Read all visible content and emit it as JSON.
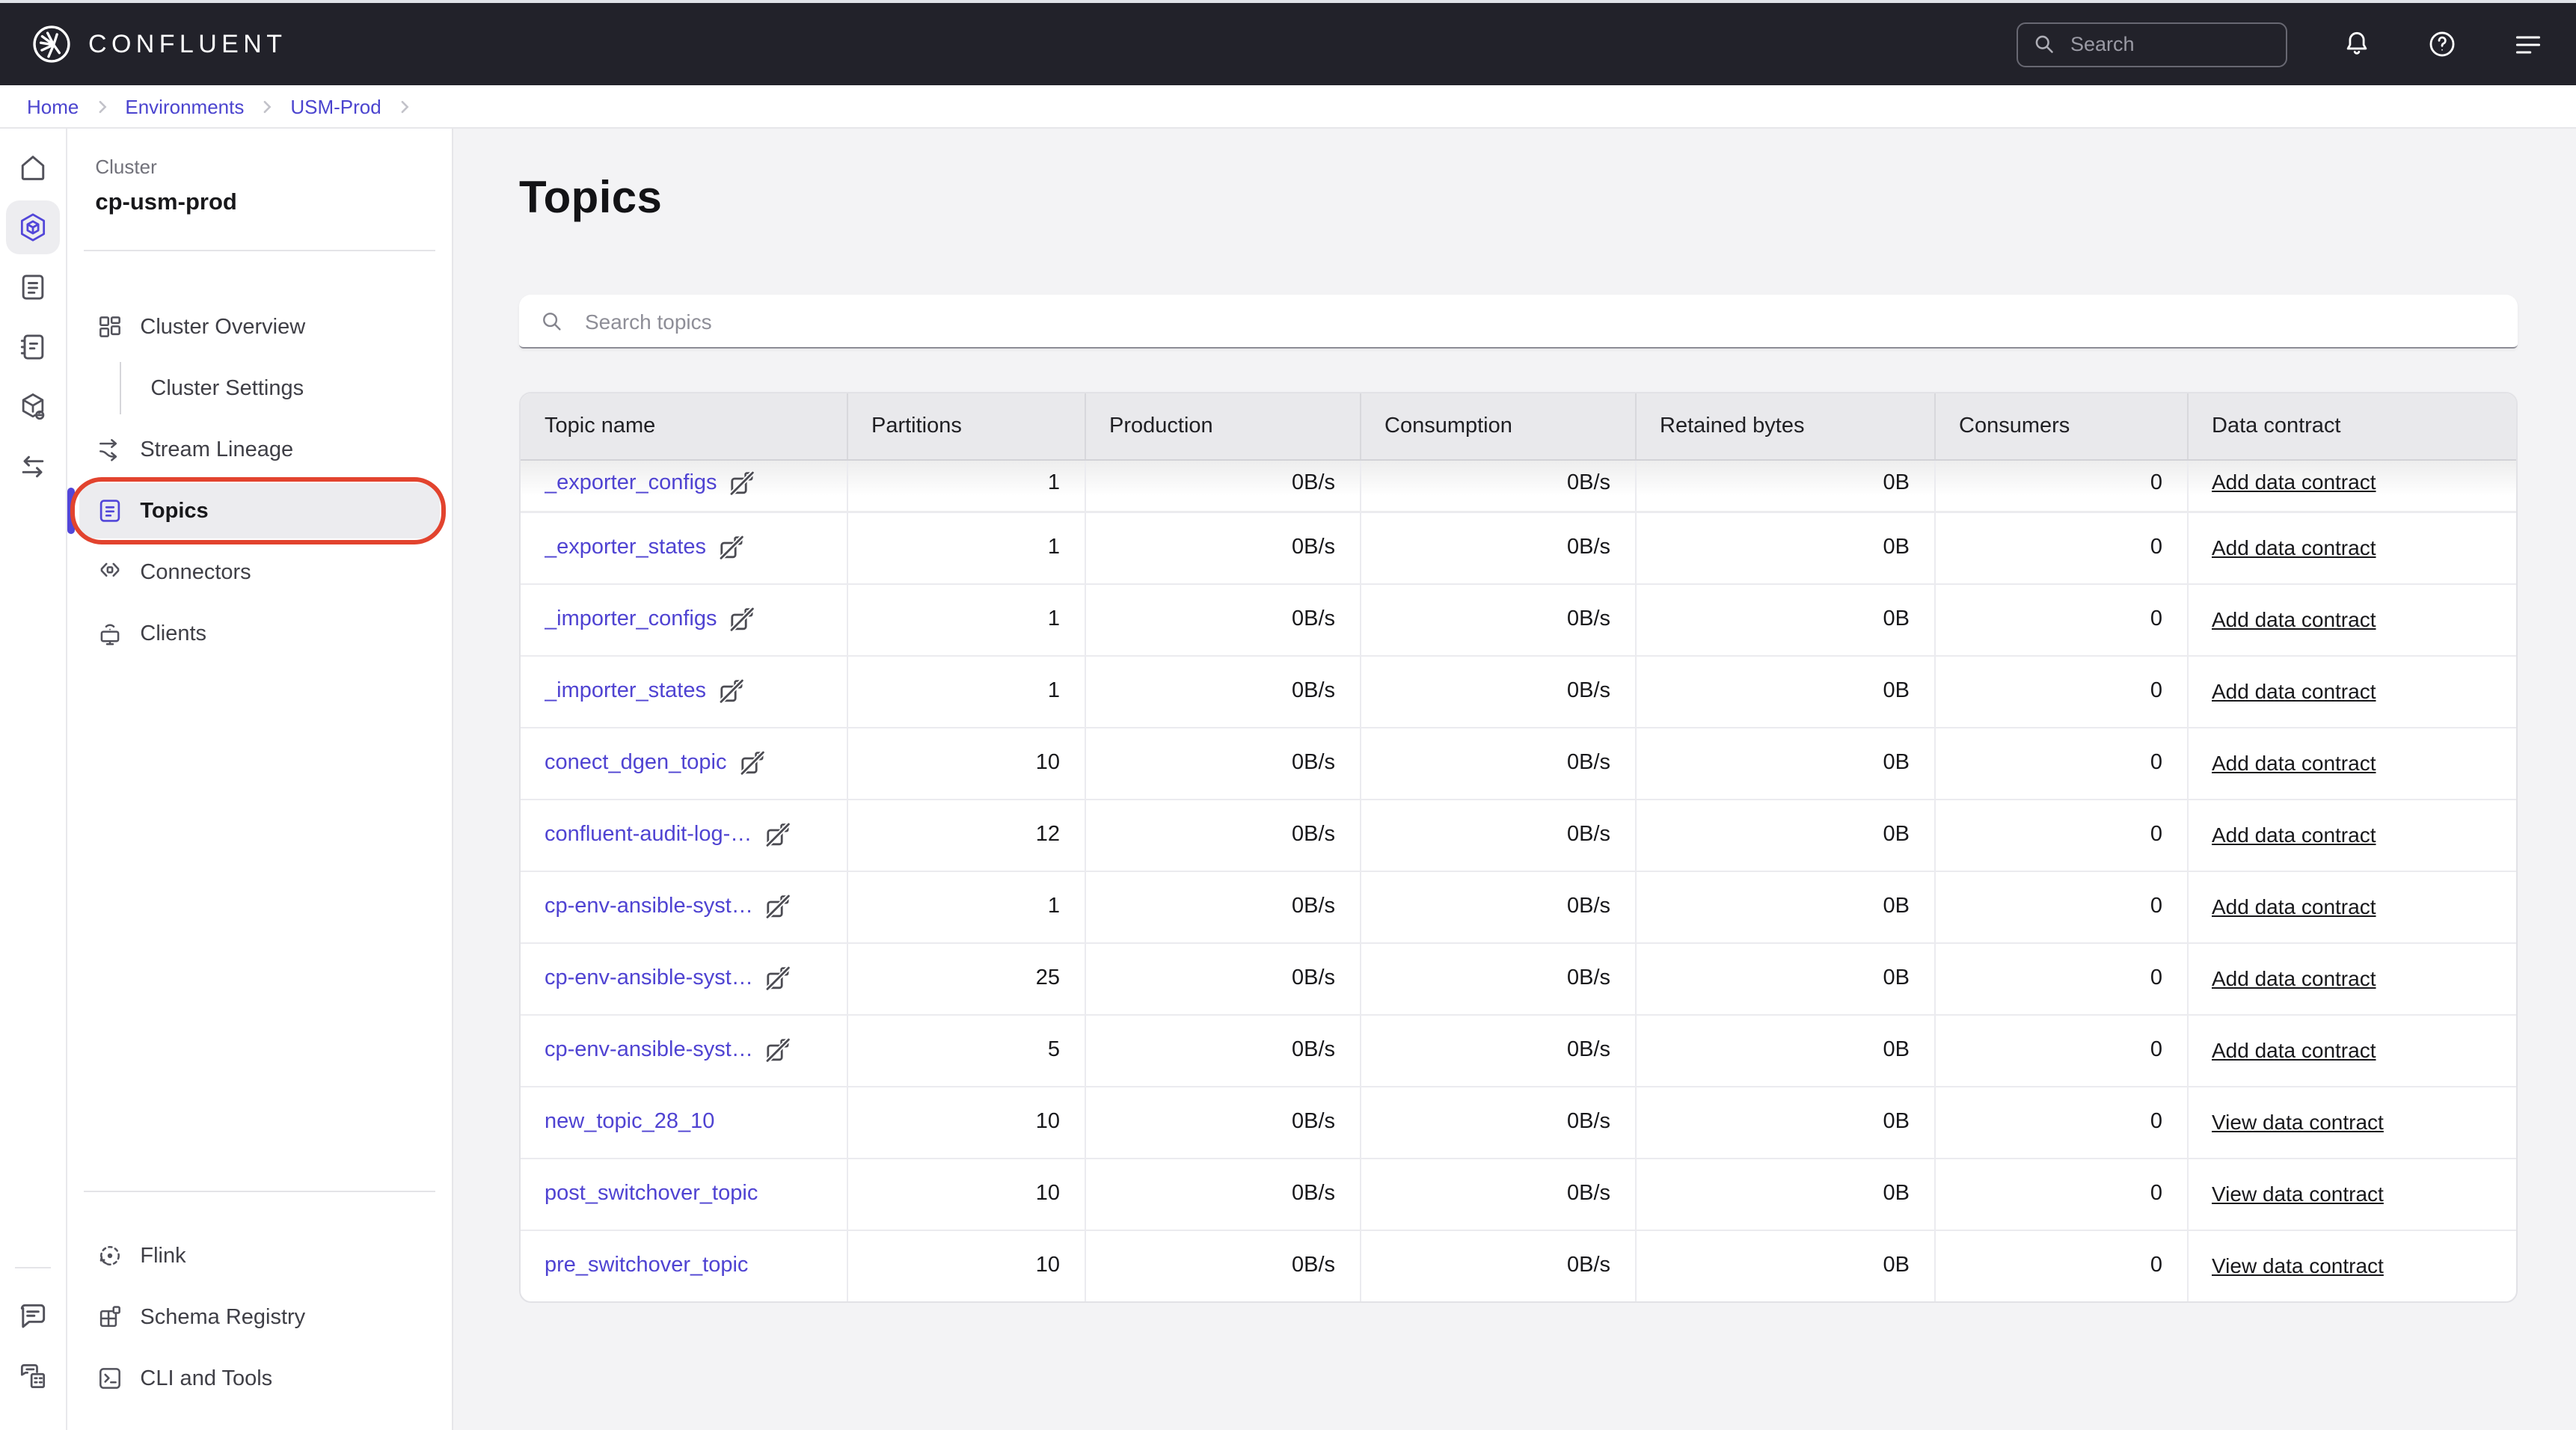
{
  "topbar": {
    "brand": "CONFLUENT",
    "search_placeholder": "Search"
  },
  "breadcrumb": {
    "items": [
      "Home",
      "Environments",
      "USM-Prod"
    ]
  },
  "sidebar": {
    "cluster_label": "Cluster",
    "cluster_name": "cp-usm-prod",
    "menu": [
      {
        "id": "cluster-overview",
        "label": "Cluster Overview"
      },
      {
        "id": "cluster-settings",
        "label": "Cluster Settings"
      },
      {
        "id": "stream-lineage",
        "label": "Stream Lineage"
      },
      {
        "id": "topics",
        "label": "Topics",
        "selected": true
      },
      {
        "id": "connectors",
        "label": "Connectors"
      },
      {
        "id": "clients",
        "label": "Clients"
      }
    ],
    "bottom_menu": [
      {
        "id": "flink",
        "label": "Flink"
      },
      {
        "id": "schema-registry",
        "label": "Schema Registry"
      },
      {
        "id": "cli-tools",
        "label": "CLI and Tools"
      }
    ]
  },
  "main": {
    "title": "Topics",
    "search_placeholder": "Search topics",
    "table": {
      "columns": [
        "Topic name",
        "Partitions",
        "Production",
        "Consumption",
        "Retained bytes",
        "Consumers",
        "Data contract"
      ],
      "rows": [
        {
          "name": "_exporter_configs",
          "schema_missing_icon": true,
          "partitions": "1",
          "production": "0B/s",
          "consumption": "0B/s",
          "retained_bytes": "0B",
          "consumers": "0",
          "data_contract": "Add data contract"
        },
        {
          "name": "_exporter_states",
          "schema_missing_icon": true,
          "partitions": "1",
          "production": "0B/s",
          "consumption": "0B/s",
          "retained_bytes": "0B",
          "consumers": "0",
          "data_contract": "Add data contract"
        },
        {
          "name": "_importer_configs",
          "schema_missing_icon": true,
          "partitions": "1",
          "production": "0B/s",
          "consumption": "0B/s",
          "retained_bytes": "0B",
          "consumers": "0",
          "data_contract": "Add data contract"
        },
        {
          "name": "_importer_states",
          "schema_missing_icon": true,
          "partitions": "1",
          "production": "0B/s",
          "consumption": "0B/s",
          "retained_bytes": "0B",
          "consumers": "0",
          "data_contract": "Add data contract"
        },
        {
          "name": "conect_dgen_topic",
          "schema_missing_icon": true,
          "partitions": "10",
          "production": "0B/s",
          "consumption": "0B/s",
          "retained_bytes": "0B",
          "consumers": "0",
          "data_contract": "Add data contract"
        },
        {
          "name": "confluent-audit-log-…",
          "schema_missing_icon": true,
          "partitions": "12",
          "production": "0B/s",
          "consumption": "0B/s",
          "retained_bytes": "0B",
          "consumers": "0",
          "data_contract": "Add data contract"
        },
        {
          "name": "cp-env-ansible-syst…",
          "schema_missing_icon": true,
          "partitions": "1",
          "production": "0B/s",
          "consumption": "0B/s",
          "retained_bytes": "0B",
          "consumers": "0",
          "data_contract": "Add data contract"
        },
        {
          "name": "cp-env-ansible-syst…",
          "schema_missing_icon": true,
          "partitions": "25",
          "production": "0B/s",
          "consumption": "0B/s",
          "retained_bytes": "0B",
          "consumers": "0",
          "data_contract": "Add data contract"
        },
        {
          "name": "cp-env-ansible-syst…",
          "schema_missing_icon": true,
          "partitions": "5",
          "production": "0B/s",
          "consumption": "0B/s",
          "retained_bytes": "0B",
          "consumers": "0",
          "data_contract": "Add data contract"
        },
        {
          "name": "new_topic_28_10",
          "schema_missing_icon": false,
          "partitions": "10",
          "production": "0B/s",
          "consumption": "0B/s",
          "retained_bytes": "0B",
          "consumers": "0",
          "data_contract": "View data contract"
        },
        {
          "name": "post_switchover_topic",
          "schema_missing_icon": false,
          "partitions": "10",
          "production": "0B/s",
          "consumption": "0B/s",
          "retained_bytes": "0B",
          "consumers": "0",
          "data_contract": "View data contract"
        },
        {
          "name": "pre_switchover_topic",
          "schema_missing_icon": false,
          "partitions": "10",
          "production": "0B/s",
          "consumption": "0B/s",
          "retained_bytes": "0B",
          "consumers": "0",
          "data_contract": "View data contract"
        }
      ]
    }
  },
  "colors": {
    "accent_purple": "#4f43d2",
    "annotation_red": "#e2432e",
    "topbar_bg": "#22222a",
    "selected_item_bg": "#ececef"
  }
}
